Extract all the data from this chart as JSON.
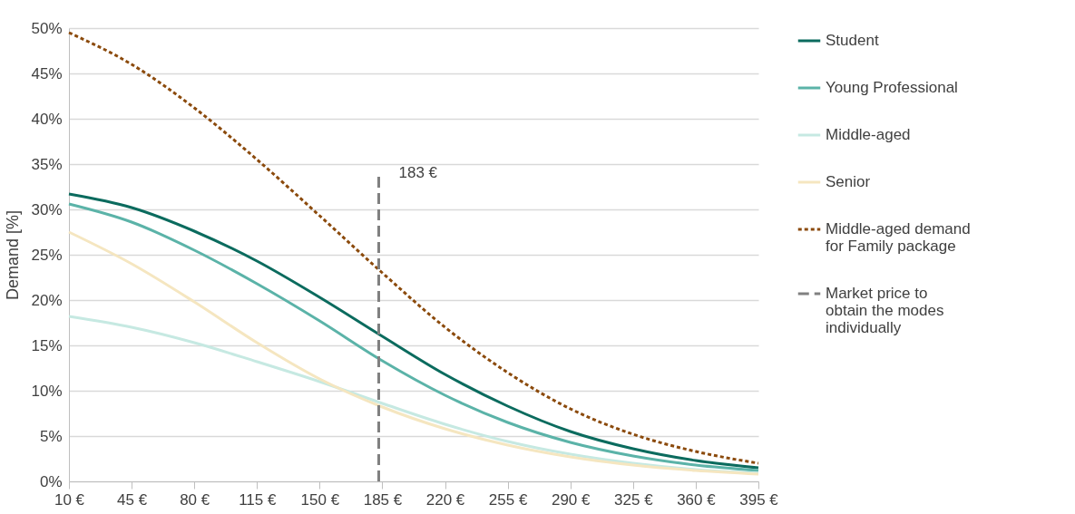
{
  "chart_data": {
    "type": "line",
    "ylabel": "Demand [%]",
    "xlim": [
      10,
      395
    ],
    "xticks": [
      {
        "value": 10,
        "label": "10 €"
      },
      {
        "value": 45,
        "label": "45 €"
      },
      {
        "value": 80,
        "label": "80 €"
      },
      {
        "value": 115,
        "label": "115 €"
      },
      {
        "value": 150,
        "label": "150 €"
      },
      {
        "value": 185,
        "label": "185 €"
      },
      {
        "value": 220,
        "label": "220 €"
      },
      {
        "value": 255,
        "label": "255 €"
      },
      {
        "value": 290,
        "label": "290 €"
      },
      {
        "value": 325,
        "label": "325 €"
      },
      {
        "value": 360,
        "label": "360 €"
      },
      {
        "value": 395,
        "label": "395 €"
      }
    ],
    "ylim": [
      0,
      50
    ],
    "yticks": [
      {
        "value": 0,
        "label": "0%"
      },
      {
        "value": 5,
        "label": "5%"
      },
      {
        "value": 10,
        "label": "10%"
      },
      {
        "value": 15,
        "label": "15%"
      },
      {
        "value": 20,
        "label": "20%"
      },
      {
        "value": 25,
        "label": "25%"
      },
      {
        "value": 30,
        "label": "30%"
      },
      {
        "value": 35,
        "label": "35%"
      },
      {
        "value": 40,
        "label": "40%"
      },
      {
        "value": 45,
        "label": "45%"
      },
      {
        "value": 50,
        "label": "50%"
      }
    ],
    "x": [
      10,
      45,
      80,
      115,
      150,
      185,
      220,
      255,
      290,
      325,
      360,
      395
    ],
    "grid": "y",
    "legend": "right",
    "series": [
      {
        "name": "Student",
        "color": "#0b6b5e",
        "line_style": "solid",
        "values": [
          31.7,
          30.2,
          27.6,
          24.3,
          20.3,
          16.0,
          11.8,
          8.3,
          5.5,
          3.6,
          2.3,
          1.5
        ]
      },
      {
        "name": "Young Professional",
        "color": "#5bb3a8",
        "line_style": "solid",
        "values": [
          30.6,
          28.6,
          25.5,
          21.8,
          17.7,
          13.3,
          9.5,
          6.5,
          4.3,
          2.8,
          1.8,
          1.2
        ]
      },
      {
        "name": "Middle-aged",
        "color": "#c6e9e2",
        "line_style": "solid",
        "values": [
          18.2,
          17.0,
          15.3,
          13.2,
          11.0,
          8.6,
          6.3,
          4.4,
          3.0,
          2.0,
          1.3,
          0.9
        ]
      },
      {
        "name": "Senior",
        "color": "#f5e6c0",
        "line_style": "solid",
        "values": [
          27.5,
          24.0,
          19.8,
          15.3,
          11.3,
          8.2,
          5.8,
          4.0,
          2.7,
          1.8,
          1.2,
          0.8
        ]
      },
      {
        "name": "Middle-aged demand for Family package",
        "color": "#8b4a0c",
        "line_style": "dotted",
        "values": [
          49.5,
          46.0,
          41.2,
          35.5,
          29.3,
          23.0,
          17.0,
          12.0,
          8.0,
          5.2,
          3.3,
          2.0
        ]
      },
      {
        "name": "Market price to obtain the modes individually",
        "color": "#808080",
        "line_style": "dashed",
        "x": [
          183,
          183
        ],
        "values": [
          0,
          34
        ]
      }
    ],
    "annotations": [
      {
        "text": "183 €",
        "x": 183,
        "y": 34
      }
    ]
  }
}
